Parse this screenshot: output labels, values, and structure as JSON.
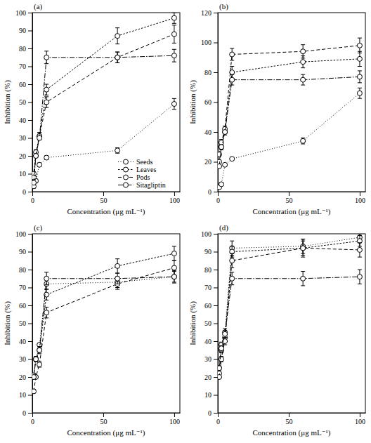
{
  "chart_data": [
    {
      "type": "line",
      "title": "(a)",
      "x_label": "Concentration (μg mL⁻¹)",
      "y_label": "Inhibition (%)",
      "x": [
        1,
        2.5,
        5,
        10,
        60,
        100
      ],
      "xlim": [
        0,
        104
      ],
      "xticks": [
        0,
        50,
        100
      ],
      "ylim": [
        0,
        100
      ],
      "yticks": [
        0,
        10,
        20,
        30,
        40,
        50,
        60,
        70,
        80,
        90,
        100
      ],
      "legend": "lower right",
      "marker": "circle",
      "series": [
        {
          "name": "Seeds",
          "color": "#000000",
          "line_style": "dotted",
          "values": [
            3,
            6,
            15,
            19,
            23,
            49
          ],
          "errors": [
            1,
            1,
            1,
            1,
            1.5,
            3
          ]
        },
        {
          "name": "Leaves",
          "color": "#000000",
          "line_style": "short-dashed",
          "values": [
            10,
            22,
            31,
            57,
            87,
            97
          ],
          "errors": [
            1,
            1.5,
            2,
            3,
            4.5,
            3
          ]
        },
        {
          "name": "Pods",
          "color": "#000000",
          "line_style": "dashed",
          "values": [
            8,
            20,
            31,
            50,
            75,
            88
          ],
          "errors": [
            1,
            1,
            2,
            3,
            3,
            5
          ]
        },
        {
          "name": "Sitagliptin",
          "color": "#000000",
          "line_style": "dash-dot",
          "values": [
            5,
            20,
            30,
            75,
            75,
            76
          ],
          "errors": [
            1,
            1,
            1,
            3.5,
            3,
            3.5
          ]
        }
      ]
    },
    {
      "type": "line",
      "title": "(b)",
      "x_label": "Concentration (μg mL⁻¹)",
      "y_label": "Inhibition (%)",
      "x": [
        1,
        2.5,
        5,
        10,
        60,
        100
      ],
      "xlim": [
        0,
        104
      ],
      "xticks": [
        0,
        50,
        100
      ],
      "ylim": [
        0,
        120
      ],
      "yticks": [
        0,
        20,
        40,
        60,
        80,
        100,
        120
      ],
      "marker": "circle",
      "series": [
        {
          "color": "#000000",
          "line_style": "dotted",
          "values": [
            3,
            5,
            18,
            22,
            34,
            66
          ],
          "errors": [
            1,
            1,
            1,
            1,
            2,
            3.5
          ]
        },
        {
          "color": "#000000",
          "line_style": "short-dashed",
          "values": [
            20,
            30,
            40,
            80,
            87,
            89
          ],
          "errors": [
            1,
            2,
            2,
            4,
            4,
            5
          ]
        },
        {
          "color": "#000000",
          "line_style": "dashed",
          "values": [
            25,
            33,
            42,
            92,
            94,
            98
          ],
          "errors": [
            1,
            2,
            2,
            4,
            4.5,
            5
          ]
        },
        {
          "color": "#000000",
          "line_style": "dash-dot",
          "values": [
            17,
            30,
            40,
            75,
            75,
            77
          ],
          "errors": [
            1,
            1,
            1,
            3.5,
            3.5,
            4
          ]
        }
      ]
    },
    {
      "type": "line",
      "title": "(c)",
      "x_label": "Concentration (μg mL⁻¹)",
      "y_label": "Inhibition (%)",
      "x": [
        1,
        2.5,
        5,
        10,
        60,
        100
      ],
      "xlim": [
        0,
        104
      ],
      "xticks": [
        0,
        50,
        100
      ],
      "ylim": [
        0,
        100
      ],
      "yticks": [
        0,
        10,
        20,
        30,
        40,
        50,
        60,
        70,
        80,
        90,
        100
      ],
      "marker": "circle",
      "series": [
        {
          "color": "#000000",
          "line_style": "dotted",
          "values": [
            20,
            30,
            38,
            72,
            73,
            76
          ],
          "errors": [
            1,
            1,
            1,
            3,
            3,
            3
          ]
        },
        {
          "color": "#000000",
          "line_style": "short-dashed",
          "values": [
            21,
            30,
            35,
            66,
            82,
            89
          ],
          "errors": [
            1,
            1.5,
            2,
            3,
            4,
            4
          ]
        },
        {
          "color": "#000000",
          "line_style": "dashed",
          "values": [
            12,
            20,
            27,
            56,
            72,
            81
          ],
          "errors": [
            1,
            1,
            1.5,
            3,
            3,
            4
          ]
        },
        {
          "color": "#000000",
          "line_style": "dash-dot",
          "values": [
            20,
            30,
            35,
            75,
            75,
            76
          ],
          "errors": [
            1,
            1,
            1,
            3.5,
            3,
            3.5
          ]
        }
      ]
    },
    {
      "type": "line",
      "title": "(d)",
      "x_label": "Concentration (μg mL⁻¹)",
      "y_label": "Inhibition (%)",
      "x": [
        1,
        2.5,
        5,
        10,
        60,
        100
      ],
      "xlim": [
        0,
        104
      ],
      "xticks": [
        0,
        50,
        100
      ],
      "ylim": [
        0,
        100
      ],
      "yticks": [
        0,
        10,
        20,
        30,
        40,
        50,
        60,
        70,
        80,
        90,
        100
      ],
      "marker": "circle",
      "series": [
        {
          "color": "#000000",
          "line_style": "dotted",
          "values": [
            25,
            38,
            45,
            92,
            93,
            98
          ],
          "errors": [
            1,
            1.5,
            2,
            4,
            4,
            2
          ]
        },
        {
          "color": "#000000",
          "line_style": "short-dashed",
          "values": [
            22,
            35,
            42,
            90,
            92,
            96
          ],
          "errors": [
            1,
            1.5,
            2,
            3,
            4,
            3
          ]
        },
        {
          "color": "#000000",
          "line_style": "dashed",
          "values": [
            20,
            30,
            40,
            85,
            92,
            91
          ],
          "errors": [
            1,
            1.5,
            2,
            4,
            5,
            4
          ]
        },
        {
          "color": "#000000",
          "line_style": "dash-dot",
          "values": [
            25,
            36,
            44,
            75,
            75,
            76
          ],
          "errors": [
            1,
            1.5,
            2,
            3.5,
            4,
            4
          ]
        }
      ]
    }
  ]
}
